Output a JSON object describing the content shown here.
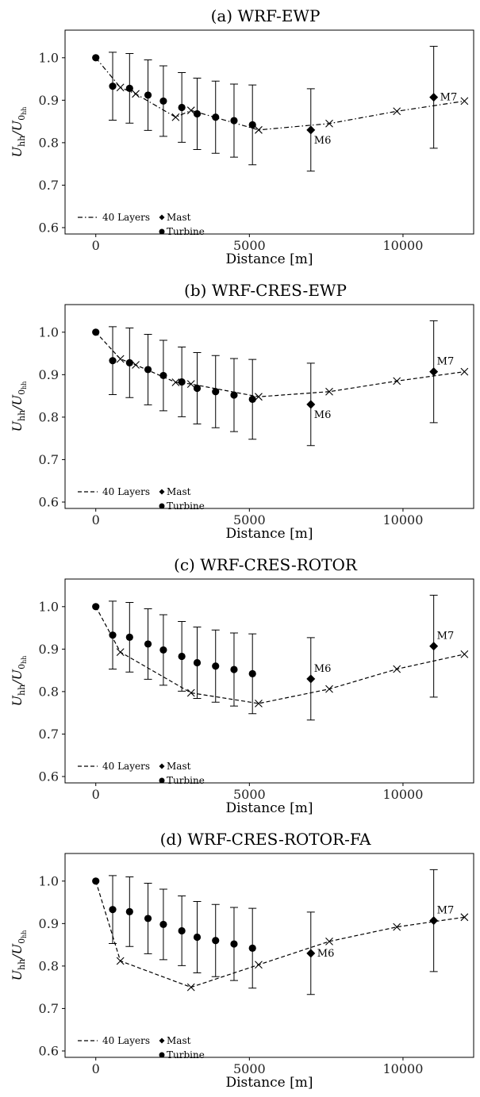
{
  "chart_data": [
    {
      "type": "line",
      "title": "(a) WRF-EWP",
      "xlabel": "Distance [m]",
      "ylabel": "U_hh/U_0hh",
      "xlim": [
        -1000,
        12300
      ],
      "ylim": [
        0.585,
        1.065
      ],
      "xticks": [
        "0",
        "5000",
        "10000"
      ],
      "yticks": [
        "0.6",
        "0.7",
        "0.8",
        "0.9",
        "1.0"
      ],
      "series": [
        {
          "name": "40 Layers",
          "style": "dashdot",
          "marker": "x",
          "x": [
            0,
            800,
            1300,
            2600,
            3100,
            5300,
            7600,
            9800,
            12000
          ],
          "y": [
            1.0,
            0.93,
            0.915,
            0.86,
            0.876,
            0.83,
            0.845,
            0.874,
            0.898
          ]
        }
      ],
      "turbine": {
        "name": "Turbine",
        "x": [
          0,
          550,
          1100,
          1700,
          2200,
          2800,
          3300,
          3900,
          4500,
          5100
        ],
        "y": [
          1.0,
          0.933,
          0.928,
          0.912,
          0.898,
          0.883,
          0.868,
          0.86,
          0.852,
          0.842
        ],
        "err": [
          0,
          0.08,
          0.082,
          0.083,
          0.083,
          0.082,
          0.084,
          0.085,
          0.086,
          0.094
        ]
      },
      "mast": {
        "name": "Mast",
        "x": [
          7000,
          11000
        ],
        "y": [
          0.83,
          0.907
        ],
        "err": [
          0.097,
          0.12
        ]
      },
      "annotations": [
        "M6",
        "M7"
      ],
      "ann_side": [
        "below",
        "right"
      ]
    },
    {
      "type": "line",
      "title": "(b) WRF-CRES-EWP",
      "xlabel": "Distance [m]",
      "ylabel": "U_hh/U_0hh",
      "xlim": [
        -1000,
        12300
      ],
      "ylim": [
        0.585,
        1.065
      ],
      "xticks": [
        "0",
        "5000",
        "10000"
      ],
      "yticks": [
        "0.6",
        "0.7",
        "0.8",
        "0.9",
        "1.0"
      ],
      "series": [
        {
          "name": "40 Layers",
          "style": "dashed",
          "marker": "x",
          "x": [
            0,
            800,
            1300,
            2600,
            3100,
            5300,
            7600,
            9800,
            12000
          ],
          "y": [
            1.0,
            0.937,
            0.923,
            0.882,
            0.878,
            0.848,
            0.86,
            0.885,
            0.907
          ]
        }
      ],
      "turbine": {
        "name": "Turbine",
        "x": [
          0,
          550,
          1100,
          1700,
          2200,
          2800,
          3300,
          3900,
          4500,
          5100
        ],
        "y": [
          1.0,
          0.933,
          0.928,
          0.912,
          0.898,
          0.883,
          0.868,
          0.86,
          0.852,
          0.842
        ],
        "err": [
          0,
          0.08,
          0.082,
          0.083,
          0.083,
          0.082,
          0.084,
          0.085,
          0.086,
          0.094
        ]
      },
      "mast": {
        "name": "Mast",
        "x": [
          7000,
          11000
        ],
        "y": [
          0.83,
          0.907
        ],
        "err": [
          0.097,
          0.12
        ]
      },
      "annotations": [
        "M6",
        "M7"
      ],
      "ann_side": [
        "below",
        "above"
      ]
    },
    {
      "type": "line",
      "title": "(c) WRF-CRES-ROTOR",
      "xlabel": "Distance [m]",
      "ylabel": "U_hh/U_0hh",
      "xlim": [
        -1000,
        12300
      ],
      "ylim": [
        0.585,
        1.065
      ],
      "xticks": [
        "0",
        "5000",
        "10000"
      ],
      "yticks": [
        "0.6",
        "0.7",
        "0.8",
        "0.9",
        "1.0"
      ],
      "series": [
        {
          "name": "40 Layers",
          "style": "dashed",
          "marker": "x",
          "x": [
            0,
            800,
            3100,
            5300,
            7600,
            9800,
            12000
          ],
          "y": [
            1.0,
            0.893,
            0.797,
            0.772,
            0.806,
            0.853,
            0.888
          ]
        }
      ],
      "turbine": {
        "name": "Turbine",
        "x": [
          0,
          550,
          1100,
          1700,
          2200,
          2800,
          3300,
          3900,
          4500,
          5100
        ],
        "y": [
          1.0,
          0.933,
          0.928,
          0.912,
          0.898,
          0.883,
          0.868,
          0.86,
          0.852,
          0.842
        ],
        "err": [
          0,
          0.08,
          0.082,
          0.083,
          0.083,
          0.082,
          0.084,
          0.085,
          0.086,
          0.094
        ]
      },
      "mast": {
        "name": "Mast",
        "x": [
          7000,
          11000
        ],
        "y": [
          0.83,
          0.907
        ],
        "err": [
          0.097,
          0.12
        ]
      },
      "annotations": [
        "M6",
        "M7"
      ],
      "ann_side": [
        "above",
        "above"
      ]
    },
    {
      "type": "line",
      "title": "(d) WRF-CRES-ROTOR-FA",
      "xlabel": "Distance [m]",
      "ylabel": "U_hh/U_0hh",
      "xlim": [
        -1000,
        12300
      ],
      "ylim": [
        0.585,
        1.065
      ],
      "xticks": [
        "0",
        "5000",
        "10000"
      ],
      "yticks": [
        "0.6",
        "0.7",
        "0.8",
        "0.9",
        "1.0"
      ],
      "series": [
        {
          "name": "40 Layers",
          "style": "dashed",
          "marker": "x",
          "x": [
            0,
            800,
            3100,
            5300,
            7600,
            9800,
            12000
          ],
          "y": [
            1.0,
            0.812,
            0.75,
            0.803,
            0.858,
            0.892,
            0.915
          ]
        }
      ],
      "turbine": {
        "name": "Turbine",
        "x": [
          0,
          550,
          1100,
          1700,
          2200,
          2800,
          3300,
          3900,
          4500,
          5100
        ],
        "y": [
          1.0,
          0.933,
          0.928,
          0.912,
          0.898,
          0.883,
          0.868,
          0.86,
          0.852,
          0.842
        ],
        "err": [
          0,
          0.08,
          0.082,
          0.083,
          0.083,
          0.082,
          0.084,
          0.085,
          0.086,
          0.094
        ]
      },
      "mast": {
        "name": "Mast",
        "x": [
          7000,
          11000
        ],
        "y": [
          0.83,
          0.907
        ],
        "err": [
          0.097,
          0.12
        ]
      },
      "annotations": [
        "M6",
        "M7"
      ],
      "ann_side": [
        "right",
        "above"
      ]
    }
  ]
}
